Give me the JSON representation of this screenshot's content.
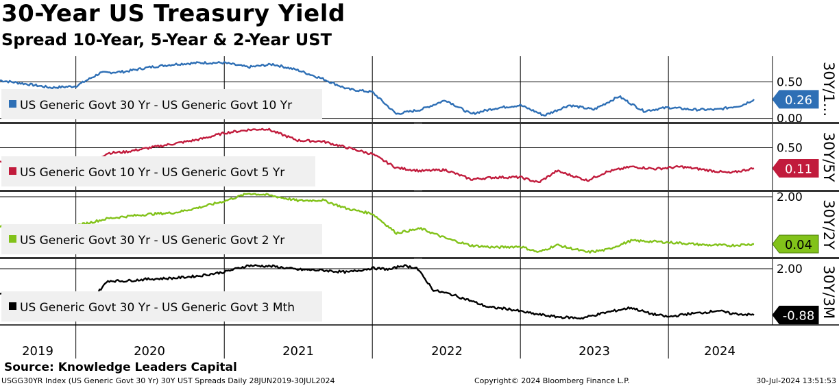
{
  "header": {
    "title": "30-Year US Treasury Yield",
    "subtitle": "Spread 10-Year, 5-Year & 2-Year UST"
  },
  "source": "Source: Knowledge Leaders Capital",
  "footer": {
    "left": "USGG30YR Index (US Generic Govt 30 Yr) 30Y UST Spreads  Daily 28JUN2019-30JUL2024",
    "middle": "Copyright© 2024 Bloomberg Finance L.P.",
    "right": "30-Jul-2024 13:51:53"
  },
  "chart_data": {
    "type": "line",
    "x_axis": {
      "start": "2019-06-28",
      "end": "2024-07-30",
      "tick_labels": [
        "2019",
        "2020",
        "2021",
        "2022",
        "2023",
        "2024"
      ]
    },
    "panels": [
      {
        "legend": "US Generic Govt 30 Yr - US Generic Govt 10 Yr",
        "axis_label": "30Y/1...",
        "color": "#2e6fb5",
        "ylim": [
          -0.05,
          0.85
        ],
        "y_ticks": [
          {
            "value": 0.5,
            "label": "0.50"
          },
          {
            "value": 0.0,
            "label": "0.00"
          }
        ],
        "last_value": "0.26",
        "series": [
          [
            "2019-06-28",
            0.52
          ],
          [
            "2019-09-01",
            0.47
          ],
          [
            "2019-11-01",
            0.42
          ],
          [
            "2020-01-01",
            0.44
          ],
          [
            "2020-03-01",
            0.62
          ],
          [
            "2020-05-01",
            0.64
          ],
          [
            "2020-07-01",
            0.7
          ],
          [
            "2020-09-01",
            0.74
          ],
          [
            "2020-11-01",
            0.76
          ],
          [
            "2021-01-01",
            0.76
          ],
          [
            "2021-03-01",
            0.7
          ],
          [
            "2021-05-01",
            0.74
          ],
          [
            "2021-07-01",
            0.66
          ],
          [
            "2021-09-01",
            0.54
          ],
          [
            "2021-11-01",
            0.4
          ],
          [
            "2022-01-01",
            0.36
          ],
          [
            "2022-03-01",
            0.06
          ],
          [
            "2022-05-01",
            0.12
          ],
          [
            "2022-07-01",
            0.25
          ],
          [
            "2022-09-01",
            0.06
          ],
          [
            "2022-11-01",
            0.14
          ],
          [
            "2023-01-01",
            0.18
          ],
          [
            "2023-03-01",
            0.04
          ],
          [
            "2023-05-01",
            0.18
          ],
          [
            "2023-07-01",
            0.12
          ],
          [
            "2023-09-01",
            0.3
          ],
          [
            "2023-11-01",
            0.1
          ],
          [
            "2024-01-01",
            0.15
          ],
          [
            "2024-03-01",
            0.12
          ],
          [
            "2024-05-01",
            0.12
          ],
          [
            "2024-07-01",
            0.18
          ],
          [
            "2024-07-30",
            0.26
          ]
        ]
      },
      {
        "legend": "US Generic Govt 10 Yr - US Generic Govt 5 Yr",
        "axis_label": "30Y/5Y",
        "color": "#c11b3c",
        "ylim": [
          -0.3,
          0.95
        ],
        "y_ticks": [
          {
            "value": 0.5,
            "label": "0.50"
          }
        ],
        "last_value": "0.11",
        "series": [
          [
            "2019-06-28",
            0.24
          ],
          [
            "2019-09-01",
            0.2
          ],
          [
            "2019-11-01",
            0.22
          ],
          [
            "2020-01-01",
            0.24
          ],
          [
            "2020-02-15",
            0.26
          ],
          [
            "2020-03-20",
            0.4
          ],
          [
            "2020-05-01",
            0.42
          ],
          [
            "2020-07-01",
            0.5
          ],
          [
            "2020-09-01",
            0.58
          ],
          [
            "2020-11-01",
            0.66
          ],
          [
            "2021-01-01",
            0.78
          ],
          [
            "2021-03-01",
            0.84
          ],
          [
            "2021-04-15",
            0.86
          ],
          [
            "2021-07-01",
            0.64
          ],
          [
            "2021-09-01",
            0.62
          ],
          [
            "2021-11-01",
            0.5
          ],
          [
            "2022-01-01",
            0.38
          ],
          [
            "2022-03-01",
            0.12
          ],
          [
            "2022-05-01",
            0.06
          ],
          [
            "2022-07-01",
            0.08
          ],
          [
            "2022-09-01",
            -0.1
          ],
          [
            "2022-11-01",
            -0.06
          ],
          [
            "2023-01-01",
            -0.06
          ],
          [
            "2023-02-15",
            -0.16
          ],
          [
            "2023-04-01",
            0.06
          ],
          [
            "2023-06-15",
            -0.12
          ],
          [
            "2023-08-01",
            0.04
          ],
          [
            "2023-10-01",
            0.14
          ],
          [
            "2023-12-01",
            0.1
          ],
          [
            "2024-02-01",
            0.14
          ],
          [
            "2024-04-01",
            0.08
          ],
          [
            "2024-06-01",
            0.02
          ],
          [
            "2024-07-30",
            0.11
          ]
        ]
      },
      {
        "legend": "US Generic Govt 30 Yr - US Generic Govt 2 Yr",
        "axis_label": "30Y/2Y",
        "color": "#82c21a",
        "ylim": [
          -0.5,
          2.2
        ],
        "y_ticks": [
          {
            "value": 2.0,
            "label": "2.00"
          }
        ],
        "last_value": "0.04",
        "series": [
          [
            "2019-06-28",
            0.78
          ],
          [
            "2019-09-01",
            0.68
          ],
          [
            "2019-11-01",
            0.74
          ],
          [
            "2020-01-01",
            0.8
          ],
          [
            "2020-03-20",
            1.1
          ],
          [
            "2020-05-01",
            1.18
          ],
          [
            "2020-07-01",
            1.28
          ],
          [
            "2020-09-01",
            1.34
          ],
          [
            "2020-11-01",
            1.56
          ],
          [
            "2021-01-01",
            1.82
          ],
          [
            "2021-03-01",
            2.14
          ],
          [
            "2021-04-15",
            2.08
          ],
          [
            "2021-07-01",
            1.84
          ],
          [
            "2021-09-01",
            1.86
          ],
          [
            "2021-11-01",
            1.5
          ],
          [
            "2022-01-01",
            1.3
          ],
          [
            "2022-03-01",
            0.5
          ],
          [
            "2022-05-01",
            0.68
          ],
          [
            "2022-07-01",
            0.28
          ],
          [
            "2022-09-01",
            -0.02
          ],
          [
            "2022-11-01",
            -0.1
          ],
          [
            "2023-01-01",
            -0.06
          ],
          [
            "2023-02-15",
            -0.3
          ],
          [
            "2023-04-01",
            0.0
          ],
          [
            "2023-06-15",
            -0.3
          ],
          [
            "2023-08-01",
            -0.2
          ],
          [
            "2023-10-01",
            0.18
          ],
          [
            "2023-12-01",
            0.14
          ],
          [
            "2024-02-01",
            0.08
          ],
          [
            "2024-04-01",
            0.0
          ],
          [
            "2024-06-01",
            -0.02
          ],
          [
            "2024-07-30",
            0.04
          ]
        ]
      },
      {
        "legend": "US Generic Govt 30 Yr - US Generic Govt 3 Mth",
        "axis_label": "30Y/3M",
        "color": "#000000",
        "ylim": [
          -1.5,
          2.6
        ],
        "y_ticks": [
          {
            "value": 2.0,
            "label": "2.00"
          }
        ],
        "last_value": "-0.88",
        "series": [
          [
            "2019-06-28",
            0.48
          ],
          [
            "2019-08-15",
            0.1
          ],
          [
            "2019-10-01",
            0.06
          ],
          [
            "2019-12-01",
            0.28
          ],
          [
            "2020-01-15",
            0.42
          ],
          [
            "2020-02-15",
            0.26
          ],
          [
            "2020-03-20",
            1.25
          ],
          [
            "2020-05-01",
            1.24
          ],
          [
            "2020-07-01",
            1.36
          ],
          [
            "2020-09-01",
            1.42
          ],
          [
            "2020-11-01",
            1.56
          ],
          [
            "2021-01-01",
            1.8
          ],
          [
            "2021-03-01",
            2.2
          ],
          [
            "2021-05-01",
            2.15
          ],
          [
            "2021-07-01",
            1.95
          ],
          [
            "2021-09-01",
            1.9
          ],
          [
            "2021-11-01",
            1.78
          ],
          [
            "2022-01-01",
            2.04
          ],
          [
            "2022-02-15",
            1.96
          ],
          [
            "2022-03-15",
            2.2
          ],
          [
            "2022-04-20",
            2.06
          ],
          [
            "2022-06-01",
            0.66
          ],
          [
            "2022-07-15",
            0.4
          ],
          [
            "2022-09-01",
            0.0
          ],
          [
            "2022-10-15",
            -0.4
          ],
          [
            "2022-12-01",
            -0.5
          ],
          [
            "2023-02-01",
            -0.8
          ],
          [
            "2023-04-01",
            -1.0
          ],
          [
            "2023-06-01",
            -1.08
          ],
          [
            "2023-08-01",
            -0.72
          ],
          [
            "2023-10-01",
            -0.42
          ],
          [
            "2023-11-15",
            -0.78
          ],
          [
            "2024-01-01",
            -1.0
          ],
          [
            "2024-02-15",
            -0.82
          ],
          [
            "2024-04-01",
            -0.72
          ],
          [
            "2024-05-01",
            -0.6
          ],
          [
            "2024-06-01",
            -0.78
          ],
          [
            "2024-07-30",
            -0.88
          ]
        ]
      }
    ]
  }
}
